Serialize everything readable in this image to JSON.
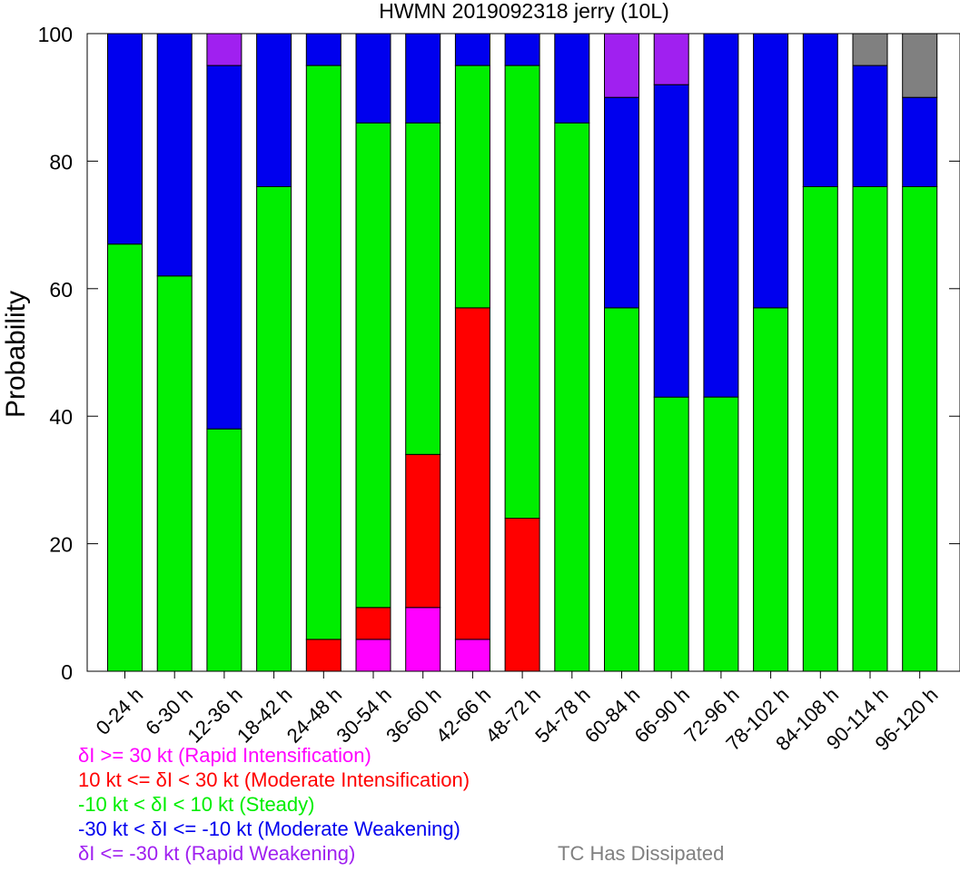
{
  "chart_data": {
    "type": "bar",
    "stacked": true,
    "title": "HWMN 2019092318 jerry (10L)",
    "xlabel": "",
    "ylabel": "Probability",
    "ylim": [
      0,
      100
    ],
    "yticks": [
      0,
      20,
      40,
      60,
      80,
      100
    ],
    "grid": false,
    "categories": [
      "0-24 h",
      "6-30 h",
      "12-36 h",
      "18-42 h",
      "24-48 h",
      "30-54 h",
      "36-60 h",
      "42-66 h",
      "48-72 h",
      "54-78 h",
      "60-84 h",
      "66-90 h",
      "72-96 h",
      "78-102 h",
      "84-108 h",
      "90-114 h",
      "96-120 h"
    ],
    "series": [
      {
        "key": "ri",
        "color": "#ff00ff",
        "values": [
          0,
          0,
          0,
          0,
          0,
          5,
          10,
          5,
          0,
          0,
          0,
          0,
          0,
          0,
          0,
          0,
          0
        ]
      },
      {
        "key": "mi",
        "color": "#ff0000",
        "values": [
          0,
          0,
          0,
          0,
          5,
          5,
          24,
          52,
          24,
          0,
          0,
          0,
          0,
          0,
          0,
          0,
          0
        ]
      },
      {
        "key": "steady",
        "color": "#00ee00",
        "values": [
          67,
          62,
          38,
          76,
          90,
          76,
          52,
          38,
          71,
          86,
          57,
          43,
          43,
          57,
          76,
          76,
          76
        ]
      },
      {
        "key": "mw",
        "color": "#0000ee",
        "values": [
          33,
          38,
          57,
          24,
          5,
          14,
          14,
          5,
          5,
          14,
          33,
          49,
          57,
          43,
          24,
          19,
          14
        ]
      },
      {
        "key": "rw",
        "color": "#a020f0",
        "values": [
          0,
          0,
          5,
          0,
          0,
          0,
          0,
          0,
          0,
          0,
          10,
          8,
          0,
          0,
          0,
          0,
          0
        ]
      },
      {
        "key": "dissipated",
        "color": "#808080",
        "values": [
          0,
          0,
          0,
          0,
          0,
          0,
          0,
          0,
          0,
          0,
          0,
          0,
          0,
          0,
          0,
          5,
          10
        ]
      }
    ]
  },
  "legend": {
    "ri_label": "δI >= 30 kt (Rapid Intensification)",
    "mi_label": "10 kt <= δI < 30 kt (Moderate Intensification)",
    "steady_label": "-10 kt < δI < 10 kt (Steady)",
    "mw_label": "-30 kt < δI <= -10 kt (Moderate Weakening)",
    "rw_label": "δI <= -30 kt (Rapid Weakening)",
    "dissipated_label": "TC Has Dissipated"
  }
}
